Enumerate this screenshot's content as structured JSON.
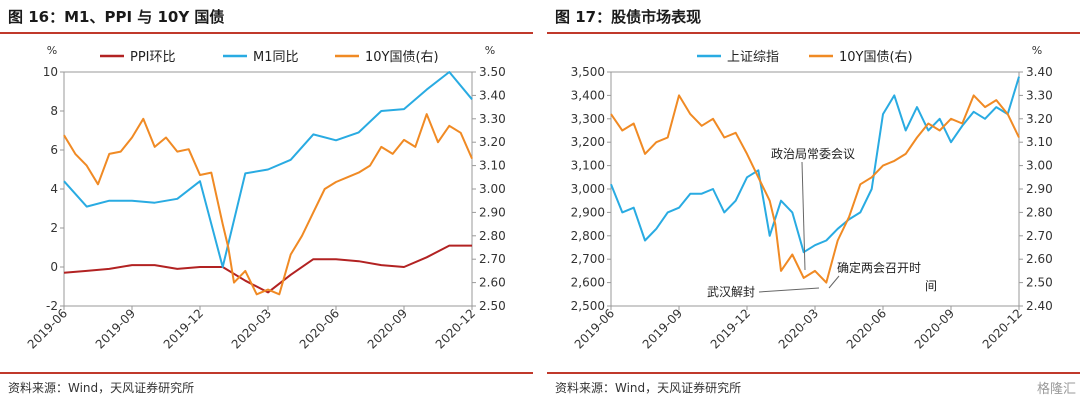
{
  "source_text": "资料来源：Wind，天风证券研究所",
  "watermark": "格隆汇",
  "chart_data": [
    {
      "type": "line",
      "title": "图 16：M1、PPI 与 10Y 国债",
      "left_unit": "%",
      "right_unit": "%",
      "ylim_left": [
        -2,
        10
      ],
      "yticks_left": [
        "10",
        "8",
        "6",
        "4",
        "2",
        "0",
        "-2"
      ],
      "ylim_right": [
        2.5,
        3.5
      ],
      "yticks_right": [
        "3.50",
        "3.40",
        "3.30",
        "3.20",
        "3.10",
        "3.00",
        "2.90",
        "2.80",
        "2.70",
        "2.60",
        "2.50"
      ],
      "x_ticks": [
        "2019-06",
        "2019-09",
        "2019-12",
        "2020-03",
        "2020-06",
        "2020-09",
        "2020-12"
      ],
      "x_months": 18,
      "legend_position": "top",
      "grid": false,
      "series": [
        {
          "name": "PPI环比",
          "color": "#b22222",
          "axis": "left",
          "x": [
            0,
            1,
            2,
            3,
            4,
            5,
            6,
            7,
            8,
            9,
            10,
            11,
            12,
            13,
            14,
            15,
            16,
            17,
            18
          ],
          "values": [
            -0.3,
            -0.2,
            -0.1,
            0.1,
            0.1,
            -0.1,
            0.0,
            0.0,
            -0.7,
            -1.3,
            -0.4,
            0.4,
            0.4,
            0.3,
            0.1,
            0.0,
            0.5,
            1.1,
            1.1
          ]
        },
        {
          "name": "M1同比",
          "color": "#29abe2",
          "axis": "left",
          "x": [
            0,
            1,
            2,
            3,
            4,
            5,
            6,
            7,
            8,
            9,
            10,
            11,
            12,
            13,
            14,
            15,
            16,
            17,
            18
          ],
          "values": [
            4.4,
            3.1,
            3.4,
            3.4,
            3.3,
            3.5,
            4.4,
            0.0,
            4.8,
            5.0,
            5.5,
            6.8,
            6.5,
            6.9,
            8.0,
            8.1,
            9.1,
            10.0,
            8.6
          ]
        },
        {
          "name": "10Y国债(右)",
          "color": "#f08a24",
          "axis": "right",
          "x": [
            0,
            0.5,
            1,
            1.5,
            2,
            2.5,
            3,
            3.5,
            4,
            4.5,
            5,
            5.5,
            6,
            6.5,
            7,
            7.25,
            7.5,
            8,
            8.5,
            9,
            9.5,
            10,
            10.5,
            11,
            11.5,
            12,
            12.5,
            13,
            13.5,
            14,
            14.5,
            15,
            15.5,
            16,
            16.5,
            17,
            17.5,
            18
          ],
          "values": [
            3.23,
            3.15,
            3.1,
            3.02,
            3.15,
            3.16,
            3.22,
            3.3,
            3.18,
            3.22,
            3.16,
            3.17,
            3.06,
            3.07,
            2.85,
            2.75,
            2.6,
            2.65,
            2.55,
            2.57,
            2.55,
            2.72,
            2.8,
            2.9,
            3.0,
            3.03,
            3.05,
            3.07,
            3.1,
            3.18,
            3.15,
            3.21,
            3.18,
            3.32,
            3.2,
            3.27,
            3.24,
            3.13
          ]
        }
      ]
    },
    {
      "type": "line",
      "title": "图 17：股债市场表现",
      "right_unit": "%",
      "ylim_left": [
        2500,
        3500
      ],
      "yticks_left": [
        "3,500",
        "3,400",
        "3,300",
        "3,200",
        "3,100",
        "3,000",
        "2,900",
        "2,800",
        "2,700",
        "2,600",
        "2,500"
      ],
      "ylim_right": [
        2.4,
        3.4
      ],
      "yticks_right": [
        "3.40",
        "3.30",
        "3.20",
        "3.10",
        "3.00",
        "2.90",
        "2.80",
        "2.70",
        "2.60",
        "2.50",
        "2.40"
      ],
      "x_ticks": [
        "2019-06",
        "2019-09",
        "2019-12",
        "2020-03",
        "2020-06",
        "2020-09",
        "2020-12"
      ],
      "x_months": 18,
      "legend_position": "top",
      "grid": false,
      "series": [
        {
          "name": "上证综指",
          "color": "#29abe2",
          "axis": "left",
          "x": [
            0,
            0.5,
            1,
            1.5,
            2,
            2.5,
            3,
            3.5,
            4,
            4.5,
            5,
            5.5,
            6,
            6.5,
            7,
            7.5,
            8,
            8.5,
            9,
            9.5,
            10,
            10.5,
            11,
            11.5,
            12,
            12.5,
            13,
            13.5,
            14,
            14.5,
            15,
            15.5,
            16,
            16.5,
            17,
            17.5,
            18
          ],
          "values": [
            3020,
            2900,
            2920,
            2780,
            2830,
            2900,
            2920,
            2980,
            2980,
            3000,
            2900,
            2950,
            3050,
            3080,
            2800,
            2950,
            2900,
            2730,
            2760,
            2780,
            2830,
            2870,
            2900,
            3000,
            3320,
            3400,
            3250,
            3350,
            3250,
            3300,
            3200,
            3270,
            3330,
            3300,
            3350,
            3320,
            3480
          ]
        },
        {
          "name": "10Y国债(右)",
          "color": "#f08a24",
          "axis": "right",
          "x": [
            0,
            0.5,
            1,
            1.5,
            2,
            2.5,
            3,
            3.5,
            4,
            4.5,
            5,
            5.5,
            6,
            6.5,
            7,
            7.25,
            7.5,
            8,
            8.5,
            9,
            9.5,
            10,
            10.5,
            11,
            11.5,
            12,
            12.5,
            13,
            13.5,
            14,
            14.5,
            15,
            15.5,
            16,
            16.5,
            17,
            17.5,
            18
          ],
          "values": [
            3.22,
            3.15,
            3.18,
            3.05,
            3.1,
            3.12,
            3.3,
            3.22,
            3.17,
            3.2,
            3.12,
            3.14,
            3.05,
            2.95,
            2.85,
            2.75,
            2.55,
            2.62,
            2.52,
            2.55,
            2.5,
            2.68,
            2.78,
            2.92,
            2.95,
            3.0,
            3.02,
            3.05,
            3.12,
            3.18,
            3.15,
            3.2,
            3.18,
            3.3,
            3.25,
            3.28,
            3.22,
            3.12
          ]
        }
      ],
      "annotations": [
        {
          "text": "政治局常委会议",
          "x": 7.5,
          "y": 2720
        },
        {
          "text": "武汉解封",
          "x": 9.3,
          "y": 2590
        },
        {
          "text": "确定两会召开时",
          "x": 9.5,
          "y": 2590
        },
        {
          "text": "间",
          "x": 9.5,
          "y": 2590
        }
      ]
    }
  ]
}
